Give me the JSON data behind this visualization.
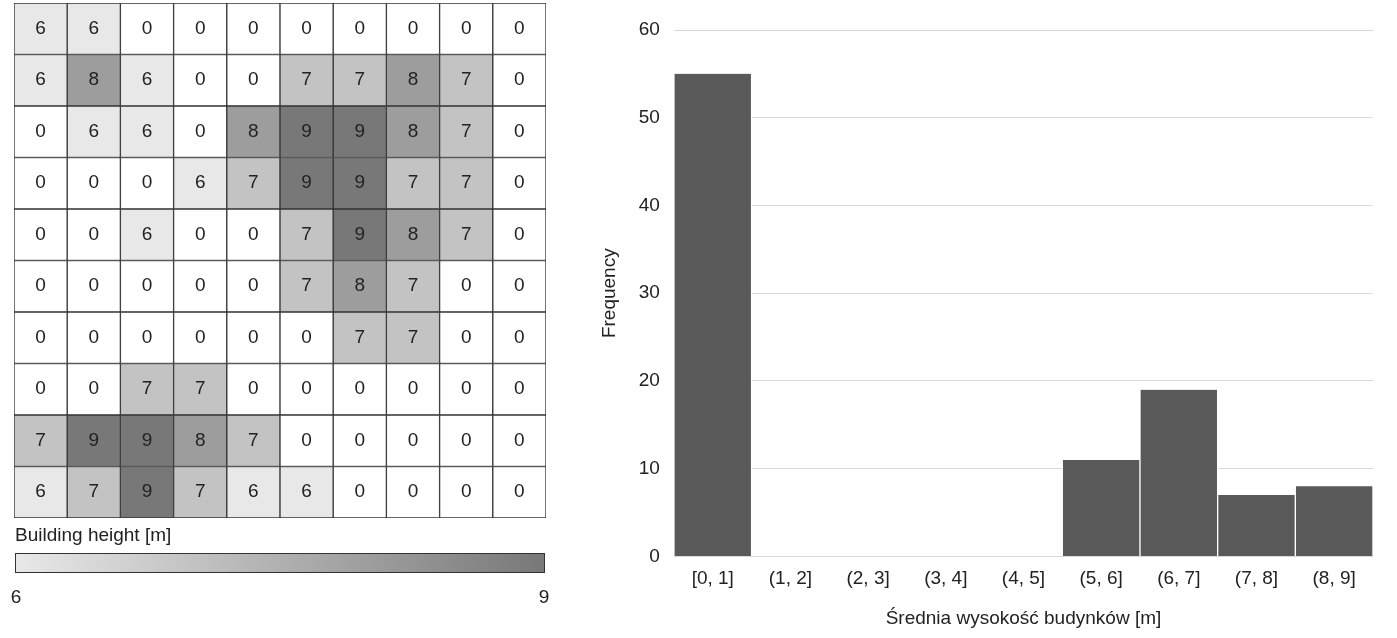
{
  "chart_data": [
    {
      "type": "heatmap",
      "categories": [
        null,
        null,
        null,
        null,
        null,
        null,
        null,
        null,
        null,
        null
      ],
      "y_categories": [
        null,
        null,
        null,
        null,
        null,
        null,
        null,
        null,
        null,
        null
      ],
      "cells": [
        [
          6,
          6,
          null,
          null,
          null,
          null,
          null,
          null,
          null,
          null
        ],
        [
          6,
          8,
          6,
          null,
          null,
          7,
          7,
          8,
          7,
          null
        ],
        [
          null,
          6,
          6,
          null,
          8,
          9,
          9,
          8,
          7,
          null
        ],
        [
          null,
          null,
          null,
          6,
          7,
          9,
          9,
          7,
          7,
          null
        ],
        [
          null,
          null,
          6,
          null,
          null,
          7,
          9,
          8,
          7,
          null
        ],
        [
          null,
          null,
          null,
          null,
          null,
          7,
          8,
          7,
          null,
          null
        ],
        [
          null,
          null,
          null,
          null,
          null,
          null,
          7,
          7,
          null,
          null
        ],
        [
          null,
          null,
          7,
          7,
          null,
          null,
          null,
          null,
          null,
          null
        ],
        [
          7,
          9,
          9,
          8,
          7,
          null,
          null,
          null,
          null,
          null
        ],
        [
          6,
          7,
          9,
          7,
          6,
          6,
          null,
          null,
          null,
          null
        ]
      ],
      "cell_labels": [
        [
          "6",
          "6",
          "0",
          "0",
          "0",
          "0",
          "0",
          "0",
          "0",
          "0"
        ],
        [
          "6",
          "8",
          "6",
          "0",
          "0",
          "7",
          "7",
          "8",
          "7",
          "0"
        ],
        [
          "0",
          "6",
          "6",
          "0",
          "8",
          "9",
          "9",
          "8",
          "7",
          "0"
        ],
        [
          "0",
          "0",
          "0",
          "6",
          "7",
          "9",
          "9",
          "7",
          "7",
          "0"
        ],
        [
          "0",
          "0",
          "6",
          "0",
          "0",
          "7",
          "9",
          "8",
          "7",
          "0"
        ],
        [
          "0",
          "0",
          "0",
          "0",
          "0",
          "7",
          "8",
          "7",
          "0",
          "0"
        ],
        [
          "0",
          "0",
          "0",
          "0",
          "0",
          "0",
          "7",
          "7",
          "0",
          "0"
        ],
        [
          "0",
          "0",
          "7",
          "7",
          "0",
          "0",
          "0",
          "0",
          "0",
          "0"
        ],
        [
          "7",
          "9",
          "9",
          "8",
          "7",
          "0",
          "0",
          "0",
          "0",
          "0"
        ],
        [
          "6",
          "7",
          "9",
          "7",
          "6",
          "6",
          "0",
          "0",
          "0",
          "0"
        ]
      ],
      "clabel": "Building height [m]",
      "clim": [
        6,
        9
      ],
      "cticks": [
        6,
        9
      ],
      "data_labels": true,
      "tick_labels": false
    },
    {
      "type": "bar",
      "categories": [
        "[0, 1]",
        "(1, 2]",
        "(2, 3]",
        "(3, 4]",
        "(4, 5]",
        "(5, 6]",
        "(6, 7]",
        "(7, 8]",
        "(8, 9]"
      ],
      "values": [
        55,
        0,
        0,
        0,
        0,
        11,
        19,
        7,
        8
      ],
      "color": "#595959",
      "xlabel": "Średnia wysokość budynków [m]",
      "ylabel": "Frequency",
      "ylim": [
        0,
        60
      ],
      "yticks": [
        0,
        10,
        20,
        30,
        40,
        50,
        60
      ],
      "grid": "y",
      "legend": false
    }
  ]
}
